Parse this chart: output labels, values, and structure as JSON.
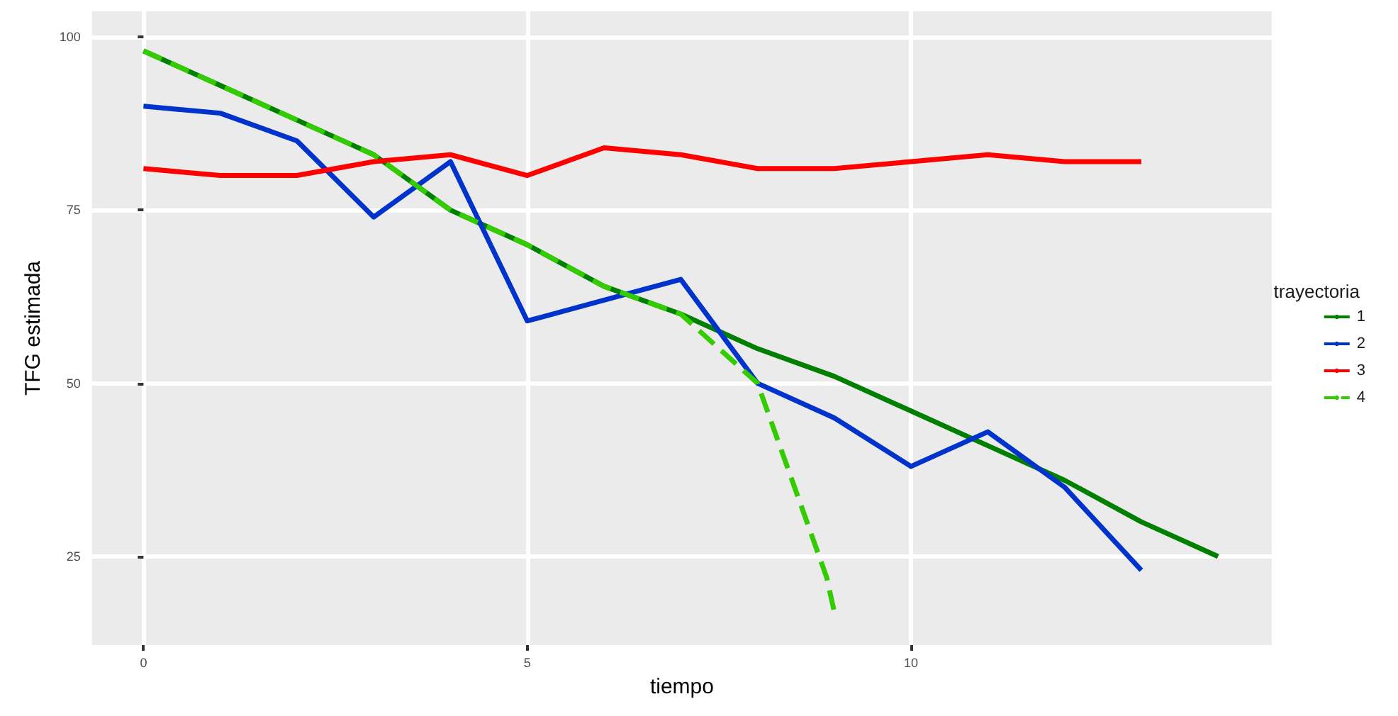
{
  "chart_data": {
    "type": "line",
    "xlabel": "tiempo",
    "ylabel": "TFG estimada",
    "legend_title": "trayectoria",
    "xlim": [
      -0.67,
      14.7
    ],
    "ylim": [
      12.2,
      103.7
    ],
    "xticks": [
      0,
      5,
      10
    ],
    "yticks": [
      25,
      50,
      75,
      100
    ],
    "grid": true,
    "legend": "right",
    "series": [
      {
        "name": "1",
        "color": "#007f00",
        "line_style": "solid",
        "x": [
          0,
          1,
          2,
          3,
          4,
          5,
          6,
          7,
          8,
          9,
          10,
          11,
          12,
          13,
          14
        ],
        "values": [
          98,
          93,
          88,
          83,
          75,
          70,
          64,
          60,
          55,
          51,
          46,
          41,
          36,
          30,
          25
        ]
      },
      {
        "name": "2",
        "color": "#0033cc",
        "line_style": "solid",
        "x": [
          0,
          1,
          2,
          3,
          4,
          5,
          6,
          7,
          8,
          9,
          10,
          11,
          12,
          13
        ],
        "values": [
          90,
          89,
          85,
          74,
          82,
          59,
          62,
          65,
          50,
          45,
          38,
          43,
          35,
          23
        ]
      },
      {
        "name": "3",
        "color": "#ff0000",
        "line_style": "solid",
        "x": [
          0,
          1,
          2,
          3,
          4,
          5,
          6,
          7,
          8,
          9,
          10,
          11,
          12,
          13
        ],
        "values": [
          81,
          80,
          80,
          82,
          83,
          80,
          84,
          83,
          81,
          81,
          82,
          83,
          82,
          82
        ]
      },
      {
        "name": "4",
        "color": "#33cc00",
        "line_style": "dashed",
        "x": [
          0,
          1,
          2,
          3,
          4,
          5,
          6,
          7,
          8,
          8.9,
          9
        ],
        "values": [
          98,
          93,
          88,
          83,
          75,
          70,
          64,
          60,
          50,
          22,
          17
        ]
      }
    ]
  }
}
